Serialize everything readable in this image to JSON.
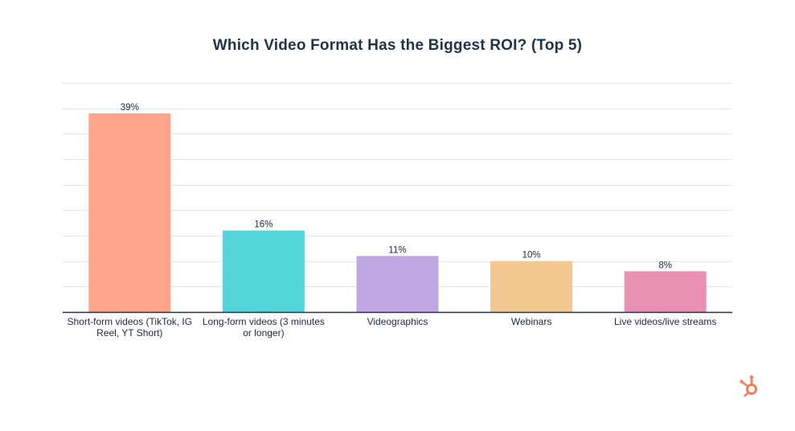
{
  "chart_data": {
    "type": "bar",
    "title": "Which Video Format Has the Biggest ROI? (Top 5)",
    "categories": [
      [
        "Short-form videos (TikTok, IG",
        "Reel, YT Short)"
      ],
      [
        "Long-form videos (3 minutes",
        "or longer)"
      ],
      [
        "Videographics"
      ],
      [
        "Webinars"
      ],
      [
        "Live videos/live streams"
      ]
    ],
    "values": [
      39,
      16,
      11,
      10,
      8
    ],
    "value_labels": [
      "39%",
      "16%",
      "11%",
      "10%",
      "8%"
    ],
    "colors": [
      "#ffa58a",
      "#55d6db",
      "#bfa7e6",
      "#f4c991",
      "#ea90b1"
    ],
    "ylim": [
      0,
      45
    ],
    "grid": true,
    "xlabel": "",
    "ylabel": ""
  },
  "brand": {
    "logo_icon": "hubspot-sprocket-icon",
    "color": "#ff7a59"
  }
}
